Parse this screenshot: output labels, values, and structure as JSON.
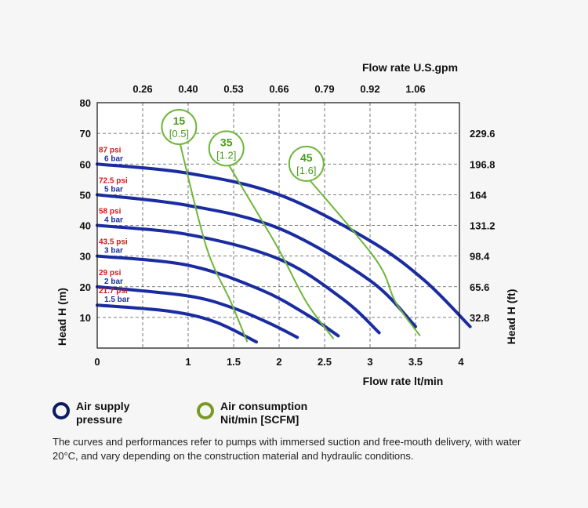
{
  "chart_data": {
    "type": "line",
    "xlabel_bottom": "Flow rate lt/min",
    "xlabel_top": "Flow rate U.S.gpm",
    "ylabel_left": "Head H (m)",
    "ylabel_right": "Head H (ft)",
    "xlim": [
      0,
      4.6
    ],
    "ylim": [
      0,
      80
    ],
    "x_ticks": [
      "0",
      "1",
      "1.5",
      "2",
      "2.5",
      "3",
      "3.5",
      "4"
    ],
    "x_tick_values": [
      0,
      1,
      1.5,
      2,
      2.5,
      3,
      3.5,
      4
    ],
    "y_ticks": [
      "10",
      "20",
      "30",
      "40",
      "50",
      "60",
      "70",
      "80"
    ],
    "y_tick_values": [
      10,
      20,
      30,
      40,
      50,
      60,
      70,
      80
    ],
    "top_ticks": [
      "0.26",
      "0.40",
      "0.53",
      "0.66",
      "0.79",
      "0.92",
      "1.06"
    ],
    "top_tick_positions": [
      0.5,
      1,
      1.5,
      2,
      2.5,
      3,
      3.5
    ],
    "right_ticks": [
      "229.6",
      "196.8",
      "164",
      "131.2",
      "98.4",
      "65.6",
      "32.8"
    ],
    "right_tick_positions": [
      70,
      60,
      50,
      40,
      30,
      20,
      10
    ],
    "grid": "dashed",
    "pressure_series": [
      {
        "psi": "87 psi",
        "bar": "6 bar",
        "points": [
          [
            0,
            60
          ],
          [
            1,
            57
          ],
          [
            2,
            50
          ],
          [
            3,
            35
          ],
          [
            3.6,
            22
          ],
          [
            4.1,
            7
          ]
        ]
      },
      {
        "psi": "72.5 psi",
        "bar": "5 bar",
        "points": [
          [
            0,
            50
          ],
          [
            1,
            46.5
          ],
          [
            2,
            39
          ],
          [
            3,
            22
          ],
          [
            3.5,
            7
          ]
        ]
      },
      {
        "psi": "58 psi",
        "bar": "4 bar",
        "points": [
          [
            0,
            40
          ],
          [
            1,
            37
          ],
          [
            2,
            29
          ],
          [
            2.7,
            16
          ],
          [
            3.1,
            5
          ]
        ]
      },
      {
        "psi": "43.5 psi",
        "bar": "3 bar",
        "points": [
          [
            0,
            30
          ],
          [
            1,
            27
          ],
          [
            1.8,
            19
          ],
          [
            2.3,
            11
          ],
          [
            2.65,
            4
          ]
        ]
      },
      {
        "psi": "29 psi",
        "bar": "2 bar",
        "points": [
          [
            0,
            20
          ],
          [
            1,
            17
          ],
          [
            1.5,
            13
          ],
          [
            1.9,
            8
          ],
          [
            2.2,
            3.5
          ]
        ]
      },
      {
        "psi": "21.7 psi",
        "bar": "1.5 bar",
        "points": [
          [
            0,
            14
          ],
          [
            0.8,
            12
          ],
          [
            1.3,
            8.5
          ],
          [
            1.75,
            2
          ]
        ]
      }
    ],
    "air_series": [
      {
        "value": "15",
        "scfm": "[0.5]",
        "points": [
          [
            0.9,
            68
          ],
          [
            1.2,
            33
          ],
          [
            1.47,
            15
          ],
          [
            1.65,
            2
          ]
        ]
      },
      {
        "value": "35",
        "scfm": "[1.2]",
        "points": [
          [
            1.42,
            61
          ],
          [
            1.98,
            33
          ],
          [
            2.3,
            15
          ],
          [
            2.6,
            3
          ]
        ]
      },
      {
        "value": "45",
        "scfm": "[1.6]",
        "points": [
          [
            2.3,
            56
          ],
          [
            3.06,
            29
          ],
          [
            3.28,
            15
          ],
          [
            3.55,
            4
          ]
        ]
      }
    ]
  },
  "legend": {
    "pressure_label": [
      "Air supply",
      "pressure"
    ],
    "air_label": [
      "Air consumption",
      "Nit/min [SCFM]"
    ],
    "pressure_color": "#0b1b5e",
    "air_color": "#7a9a22"
  },
  "colors": {
    "pressure_curve": "#1a2ca0",
    "air_curve": "#6fb63a",
    "psi_text": "#d11a1a",
    "bar_text": "#1c2f9e"
  },
  "note": "The curves and performances refer to pumps with immersed suction and free-mouth delivery, with water 20°C, and vary depending on the construction material and hydraulic conditions."
}
